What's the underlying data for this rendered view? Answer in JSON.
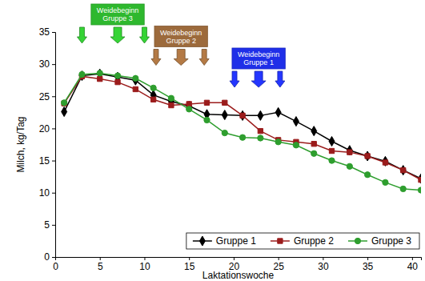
{
  "chart_data": {
    "type": "line",
    "x_label": "Laktationswoche",
    "y_label": "Milch, kg/Tag",
    "x": [
      1,
      3,
      5,
      7,
      9,
      11,
      13,
      15,
      17,
      19,
      21,
      23,
      25,
      27,
      29,
      31,
      33,
      35,
      37,
      39,
      41
    ],
    "series": [
      {
        "name": "Gruppe 1",
        "color": "#000000",
        "marker": "diamond",
        "values": [
          22.6,
          28.2,
          28.5,
          28.0,
          27.5,
          25.2,
          24.2,
          23.5,
          22.2,
          22.1,
          22.0,
          22.0,
          22.5,
          21.1,
          19.6,
          18.0,
          16.6,
          15.7,
          14.9,
          13.5,
          12.2
        ]
      },
      {
        "name": "Gruppe 2",
        "color": "#9b1c1c",
        "marker": "square",
        "values": [
          23.9,
          28.1,
          27.7,
          27.2,
          26.1,
          24.5,
          23.6,
          23.8,
          24.0,
          24.0,
          22.0,
          19.6,
          18.2,
          17.9,
          17.6,
          16.5,
          16.3,
          15.7,
          14.7,
          13.5,
          12.0
        ]
      },
      {
        "name": "Gruppe 3",
        "color": "#2e9e2e",
        "marker": "circle",
        "values": [
          24.0,
          28.4,
          28.6,
          28.2,
          27.8,
          26.3,
          24.7,
          23.0,
          21.3,
          19.3,
          18.6,
          18.5,
          17.9,
          17.4,
          16.1,
          15.0,
          14.1,
          12.8,
          11.6,
          10.6,
          10.4
        ]
      }
    ],
    "xlim": [
      0,
      41
    ],
    "xticks": [
      0,
      5,
      10,
      15,
      20,
      25,
      30,
      35,
      40
    ],
    "ylim": [
      0,
      35
    ],
    "yticks": [
      0,
      5,
      10,
      15,
      20,
      25,
      30,
      35
    ],
    "grid": false,
    "legend": "lower right",
    "annotations": [
      {
        "text": [
          "Weidebeginn",
          "Gruppe 3"
        ],
        "color": "#2eb82e",
        "x": [
          3,
          7,
          10
        ]
      },
      {
        "text": [
          "Weidebeginn",
          "Gruppe 2"
        ],
        "color": "#9c6a3c",
        "x": [
          11.3,
          14.1,
          16.7
        ]
      },
      {
        "text": [
          "Weidebeginn",
          "Gruppe 1"
        ],
        "color": "#1f2fe8",
        "x": [
          20.1,
          22.8,
          25.2
        ]
      }
    ]
  }
}
